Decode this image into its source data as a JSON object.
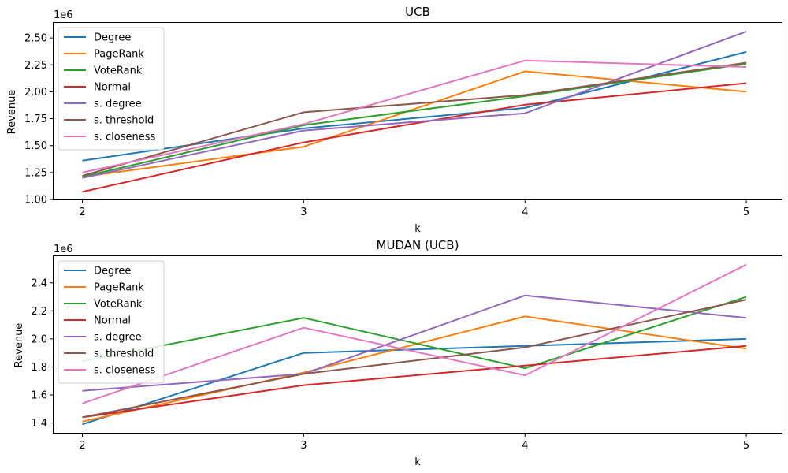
{
  "chart_data": [
    {
      "type": "line",
      "title": "UCB",
      "xlabel": "k",
      "ylabel": "Revenue",
      "offset_label": "1e6",
      "x": [
        2,
        3,
        4,
        5
      ],
      "xticks": [
        "2",
        "3",
        "4",
        "5"
      ],
      "yticks": [
        "1.00",
        "1.25",
        "1.50",
        "1.75",
        "2.00",
        "2.25",
        "2.50"
      ],
      "ytick_values": [
        1.0,
        1.25,
        1.5,
        1.75,
        2.0,
        2.25,
        2.5
      ],
      "ylim": [
        1.0,
        2.64
      ],
      "legend_position": "upper-left",
      "series": [
        {
          "name": "Degree",
          "color": "#1f77b4",
          "values": [
            1.36,
            1.66,
            1.85,
            2.37
          ]
        },
        {
          "name": "PageRank",
          "color": "#ff7f0e",
          "values": [
            1.21,
            1.49,
            2.19,
            2.0
          ]
        },
        {
          "name": "VoteRank",
          "color": "#2ca02c",
          "values": [
            1.21,
            1.69,
            1.96,
            2.26
          ]
        },
        {
          "name": "Normal",
          "color": "#d62728",
          "values": [
            1.07,
            1.53,
            1.88,
            2.08
          ]
        },
        {
          "name": "s. degree",
          "color": "#9467bd",
          "values": [
            1.2,
            1.64,
            1.8,
            2.56
          ]
        },
        {
          "name": "s. threshold",
          "color": "#8c564b",
          "values": [
            1.22,
            1.81,
            1.97,
            2.27
          ]
        },
        {
          "name": "s. closeness",
          "color": "#e377c2",
          "values": [
            1.25,
            1.7,
            2.29,
            2.23
          ]
        }
      ]
    },
    {
      "type": "line",
      "title": "MUDAN (UCB)",
      "xlabel": "k",
      "ylabel": "Revenue",
      "offset_label": "1e6",
      "x": [
        2,
        3,
        4,
        5
      ],
      "xticks": [
        "2",
        "3",
        "4",
        "5"
      ],
      "yticks": [
        "1.4",
        "1.6",
        "1.8",
        "2.0",
        "2.2",
        "2.4"
      ],
      "ytick_values": [
        1.4,
        1.6,
        1.8,
        2.0,
        2.2,
        2.4
      ],
      "ylim": [
        1.33,
        2.59
      ],
      "legend_position": "upper-left",
      "series": [
        {
          "name": "Degree",
          "color": "#1f77b4",
          "values": [
            1.39,
            1.9,
            1.95,
            2.0
          ]
        },
        {
          "name": "PageRank",
          "color": "#ff7f0e",
          "values": [
            1.41,
            1.76,
            2.16,
            1.93
          ]
        },
        {
          "name": "VoteRank",
          "color": "#2ca02c",
          "values": [
            1.84,
            2.15,
            1.79,
            2.3
          ]
        },
        {
          "name": "Normal",
          "color": "#d62728",
          "values": [
            1.44,
            1.67,
            1.81,
            1.95
          ]
        },
        {
          "name": "s. degree",
          "color": "#9467bd",
          "values": [
            1.63,
            1.75,
            2.31,
            2.15
          ]
        },
        {
          "name": "s. threshold",
          "color": "#8c564b",
          "values": [
            1.44,
            1.75,
            1.94,
            2.28
          ]
        },
        {
          "name": "s. closeness",
          "color": "#e377c2",
          "values": [
            1.54,
            2.08,
            1.74,
            2.53
          ]
        }
      ]
    }
  ]
}
